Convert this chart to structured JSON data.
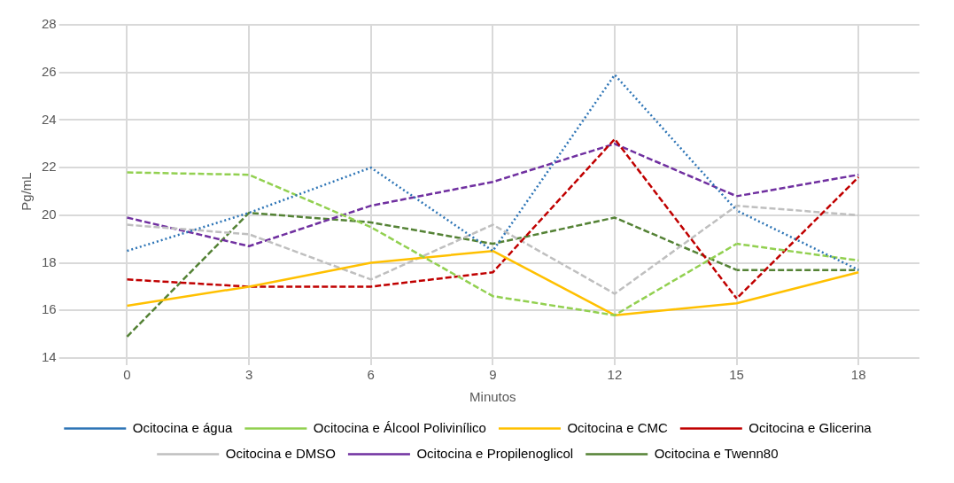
{
  "chart_data": {
    "type": "line",
    "xlabel": "Minutos",
    "ylabel": "Pg/mL",
    "categories": [
      "0",
      "3",
      "6",
      "9",
      "12",
      "15",
      "18"
    ],
    "ylim": [
      14,
      28
    ],
    "yticks": [
      14,
      16,
      18,
      20,
      22,
      24,
      26,
      28
    ],
    "grid": true,
    "legend": "bottom",
    "series": [
      {
        "name": "Ocitocina e água",
        "color": "#2e75b6",
        "line_style": "dotted",
        "values": [
          18.5,
          20.1,
          22,
          18.5,
          25.9,
          20.2,
          17.7
        ]
      },
      {
        "name": "Ocitocina e Álcool Polivinílico",
        "color": "#92d050",
        "line_style": "dashed",
        "values": [
          21.8,
          21.7,
          19.5,
          16.6,
          15.8,
          18.8,
          18.1
        ]
      },
      {
        "name": "Ocitocina e CMC",
        "color": "#ffc000",
        "line_style": "solid",
        "values": [
          16.2,
          17,
          18,
          18.5,
          15.8,
          16.3,
          17.6
        ]
      },
      {
        "name": "Ocitocina e Glicerina",
        "color": "#c00000",
        "line_style": "dashed",
        "values": [
          17.3,
          17,
          17,
          17.6,
          23.2,
          16.5,
          21.6
        ]
      },
      {
        "name": "Ocitocina e DMSO",
        "color": "#bfbfbf",
        "line_style": "dashed",
        "values": [
          19.6,
          19.2,
          17.3,
          19.6,
          16.7,
          20.4,
          20
        ]
      },
      {
        "name": "Ocitocina e Propilenoglicol",
        "color": "#7030a0",
        "line_style": "dashed",
        "values": [
          19.9,
          18.7,
          20.4,
          21.4,
          23,
          20.8,
          21.7
        ]
      },
      {
        "name": "Ocitocina e Twenn80",
        "color": "#548235",
        "line_style": "dashed",
        "values": [
          14.9,
          20.1,
          19.7,
          18.8,
          19.9,
          17.7,
          17.7
        ]
      }
    ]
  }
}
